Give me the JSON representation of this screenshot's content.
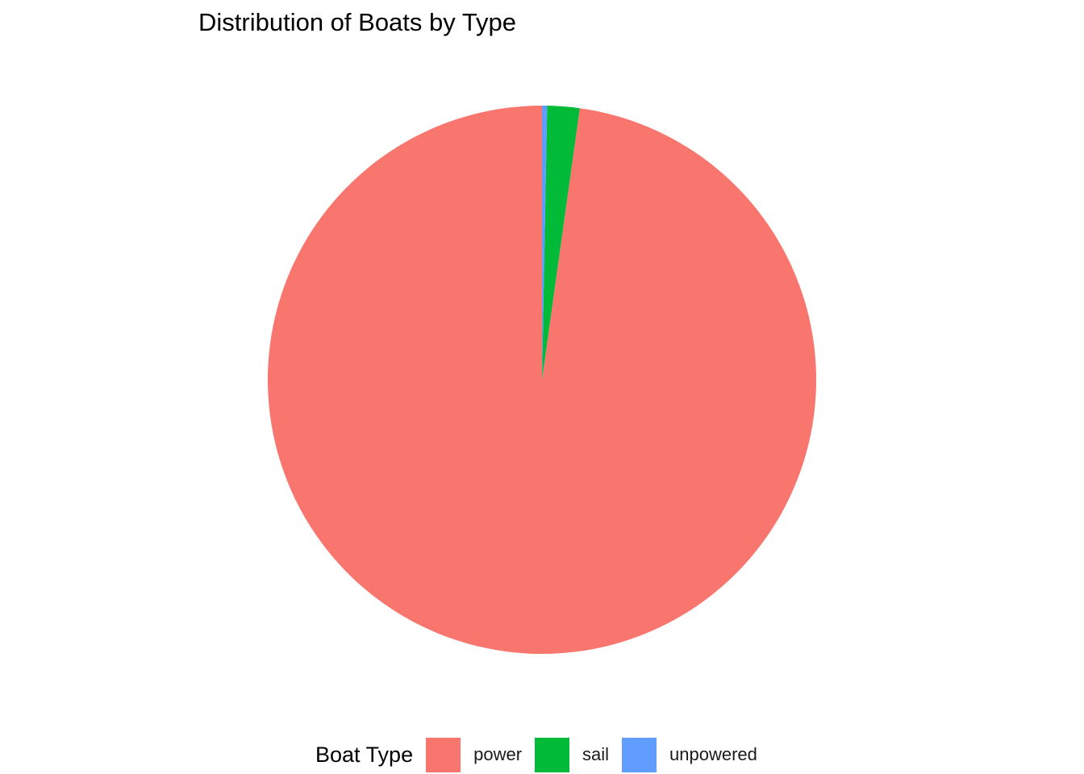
{
  "chart_data": {
    "type": "pie",
    "title": "Distribution of Boats by Type",
    "legend_title": "Boat Type",
    "legend_position": "bottom",
    "categories": [
      "power",
      "sail",
      "unpowered"
    ],
    "values": [
      97.8,
      1.9,
      0.3
    ],
    "colors": [
      "#F8766D",
      "#00BA38",
      "#619CFF"
    ],
    "start_angle": "12 o'clock",
    "direction": "counterclockwise"
  }
}
